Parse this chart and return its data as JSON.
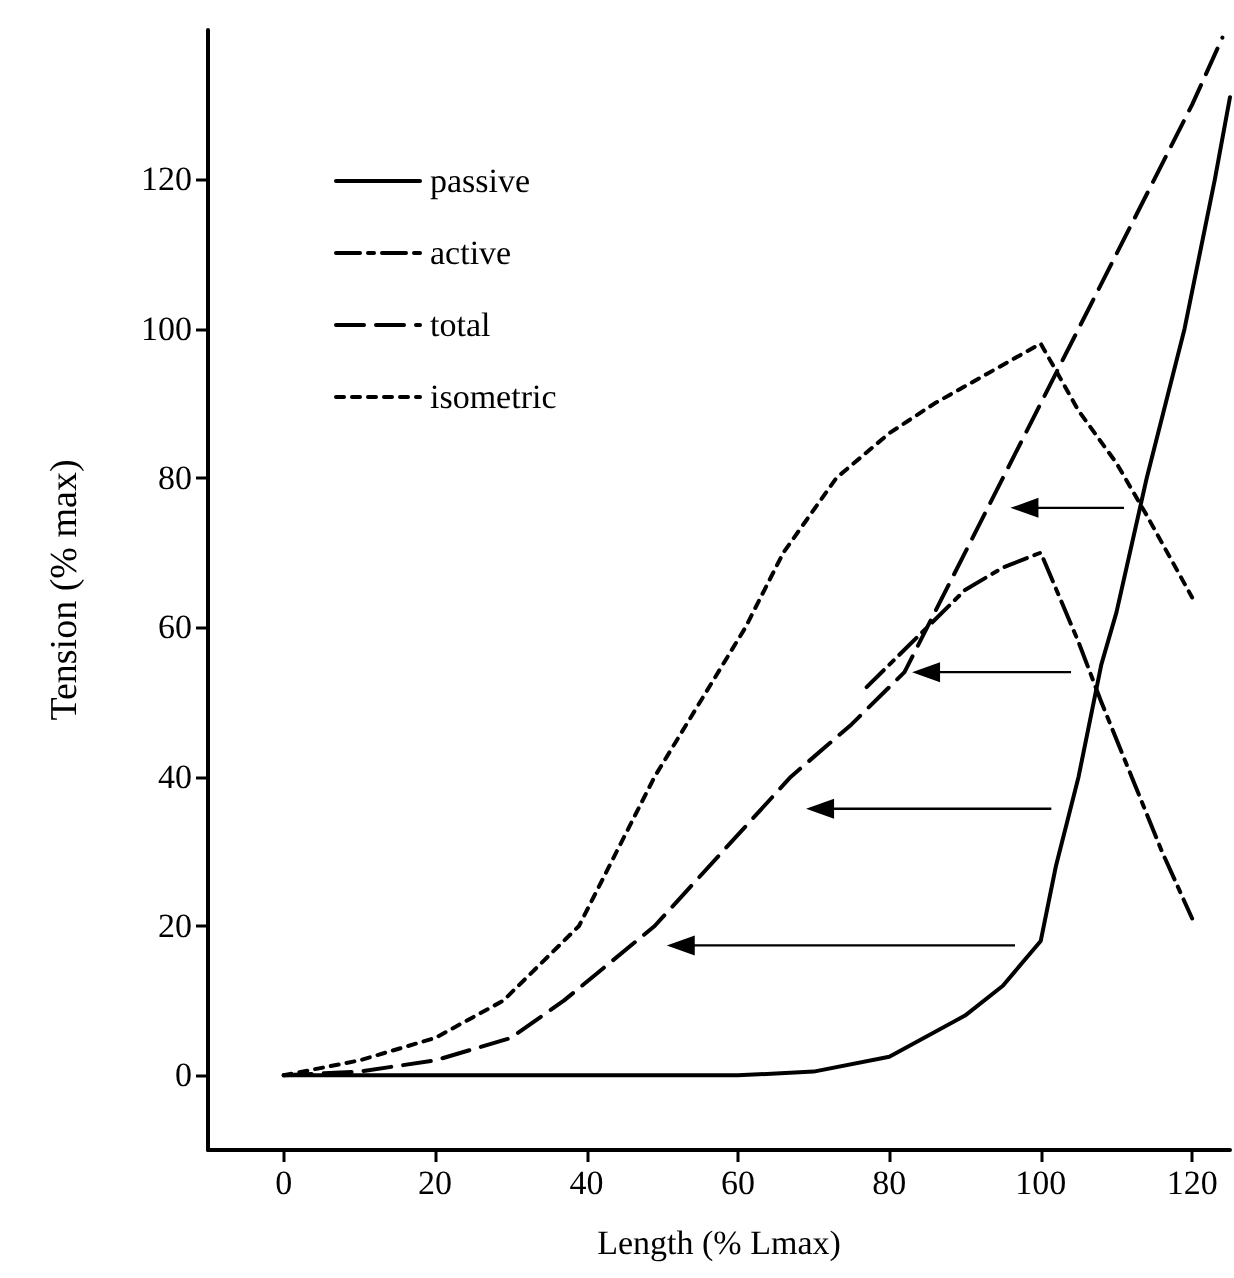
{
  "chart_data": {
    "type": "line",
    "xlabel": "Length (% Lmax)",
    "ylabel": "Tension (% max)",
    "xlim": [
      -10,
      125
    ],
    "ylim": [
      -10,
      140
    ],
    "xticks": [
      0,
      20,
      40,
      60,
      80,
      100,
      120
    ],
    "yticks": [
      0,
      20,
      40,
      60,
      80,
      100,
      120
    ],
    "grid": false,
    "legend": "top left",
    "marker": "none",
    "series": [
      {
        "name": "passive",
        "color": "#000000",
        "line_style": "solid",
        "x": [
          0,
          60,
          70,
          80,
          90,
          95,
          100,
          102,
          105,
          108,
          110,
          114,
          119,
          123,
          125
        ],
        "values": [
          0,
          0,
          0.5,
          2.5,
          8,
          12,
          18,
          28,
          40,
          55,
          62,
          80,
          100,
          120,
          131
        ]
      },
      {
        "name": "active",
        "color": "#000000",
        "line_style": "dashdot",
        "x": [
          77,
          85,
          90,
          95,
          100,
          105,
          108,
          112,
          116,
          120
        ],
        "values": [
          52,
          60,
          65,
          68,
          70,
          58,
          50,
          40,
          30,
          21
        ]
      },
      {
        "name": "total",
        "color": "#000000",
        "line_style": "dashed",
        "x": [
          0,
          10,
          20,
          30,
          37,
          49,
          58,
          67,
          75,
          82,
          90,
          100,
          110,
          120,
          124
        ],
        "values": [
          0,
          0.5,
          2,
          5,
          10,
          20,
          30,
          40,
          47,
          54,
          70,
          90,
          110,
          130,
          139
        ]
      },
      {
        "name": "isometric",
        "color": "#000000",
        "line_style": "dotted",
        "x": [
          0,
          10,
          20,
          29,
          39,
          49,
          61,
          66,
          73,
          80,
          86,
          93,
          100,
          105,
          110,
          114,
          120
        ],
        "values": [
          0,
          2,
          5,
          10,
          20,
          40,
          60,
          70,
          80,
          86,
          90,
          94,
          98,
          89,
          82,
          75,
          64
        ]
      }
    ]
  }
}
